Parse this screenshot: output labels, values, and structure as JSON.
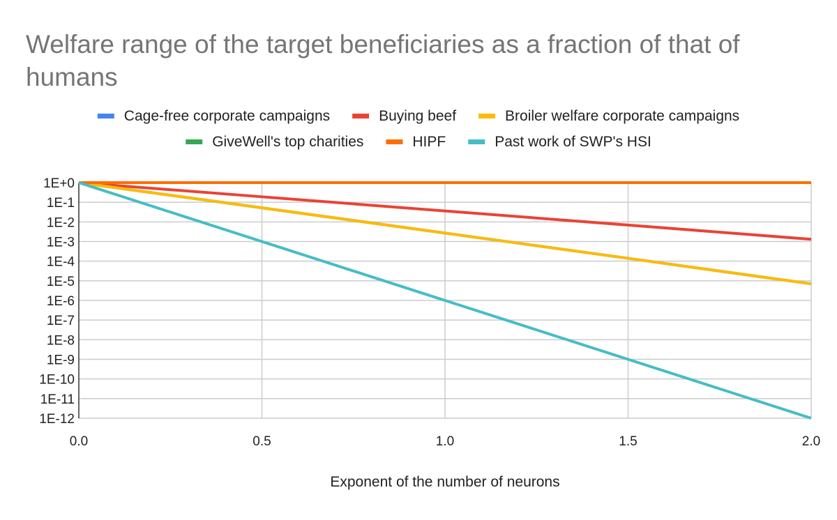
{
  "chart_data": {
    "type": "line",
    "title": "Welfare range of the target beneficiaries as a fraction of that of humans",
    "title_lines": [
      "Welfare range of the target beneficiaries as a fraction of that of",
      "humans"
    ],
    "xlabel": "Exponent of the number of neurons",
    "ylabel": "",
    "x": [
      0,
      0.5,
      1,
      1.5,
      2
    ],
    "xlim": [
      0,
      2
    ],
    "ylim": [
      1e-12,
      1
    ],
    "yscale": "log",
    "grid": true,
    "legend_placement": "top",
    "x_ticks": [
      "0.0",
      "0.5",
      "1.0",
      "1.5",
      "2.0"
    ],
    "y_ticks": [
      "1E+0",
      "1E-1",
      "1E-2",
      "1E-3",
      "1E-4",
      "1E-5",
      "1E-6",
      "1E-7",
      "1E-8",
      "1E-9",
      "1E-10",
      "1E-11",
      "1E-12"
    ],
    "series": [
      {
        "name": "Cage-free corporate campaigns",
        "color": "#4285f4",
        "values": [
          1,
          0.052,
          0.0027,
          0.00014,
          7e-06
        ]
      },
      {
        "name": "Buying beef",
        "color": "#ea4335",
        "values": [
          1,
          0.19,
          0.036,
          0.0069,
          0.0013
        ]
      },
      {
        "name": "Broiler welfare corporate campaigns",
        "color": "#fbbc04",
        "values": [
          1,
          0.052,
          0.0027,
          0.00014,
          7e-06
        ]
      },
      {
        "name": "GiveWell's top charities",
        "color": "#34a853",
        "values": [
          1,
          1,
          1,
          1,
          1
        ]
      },
      {
        "name": "HIPF",
        "color": "#ff6d01",
        "values": [
          1,
          1,
          1,
          1,
          1
        ]
      },
      {
        "name": "Past work of SWP's HSI",
        "color": "#46bdc6",
        "values": [
          1,
          0.001,
          1e-06,
          1e-09,
          1e-12
        ]
      }
    ]
  }
}
